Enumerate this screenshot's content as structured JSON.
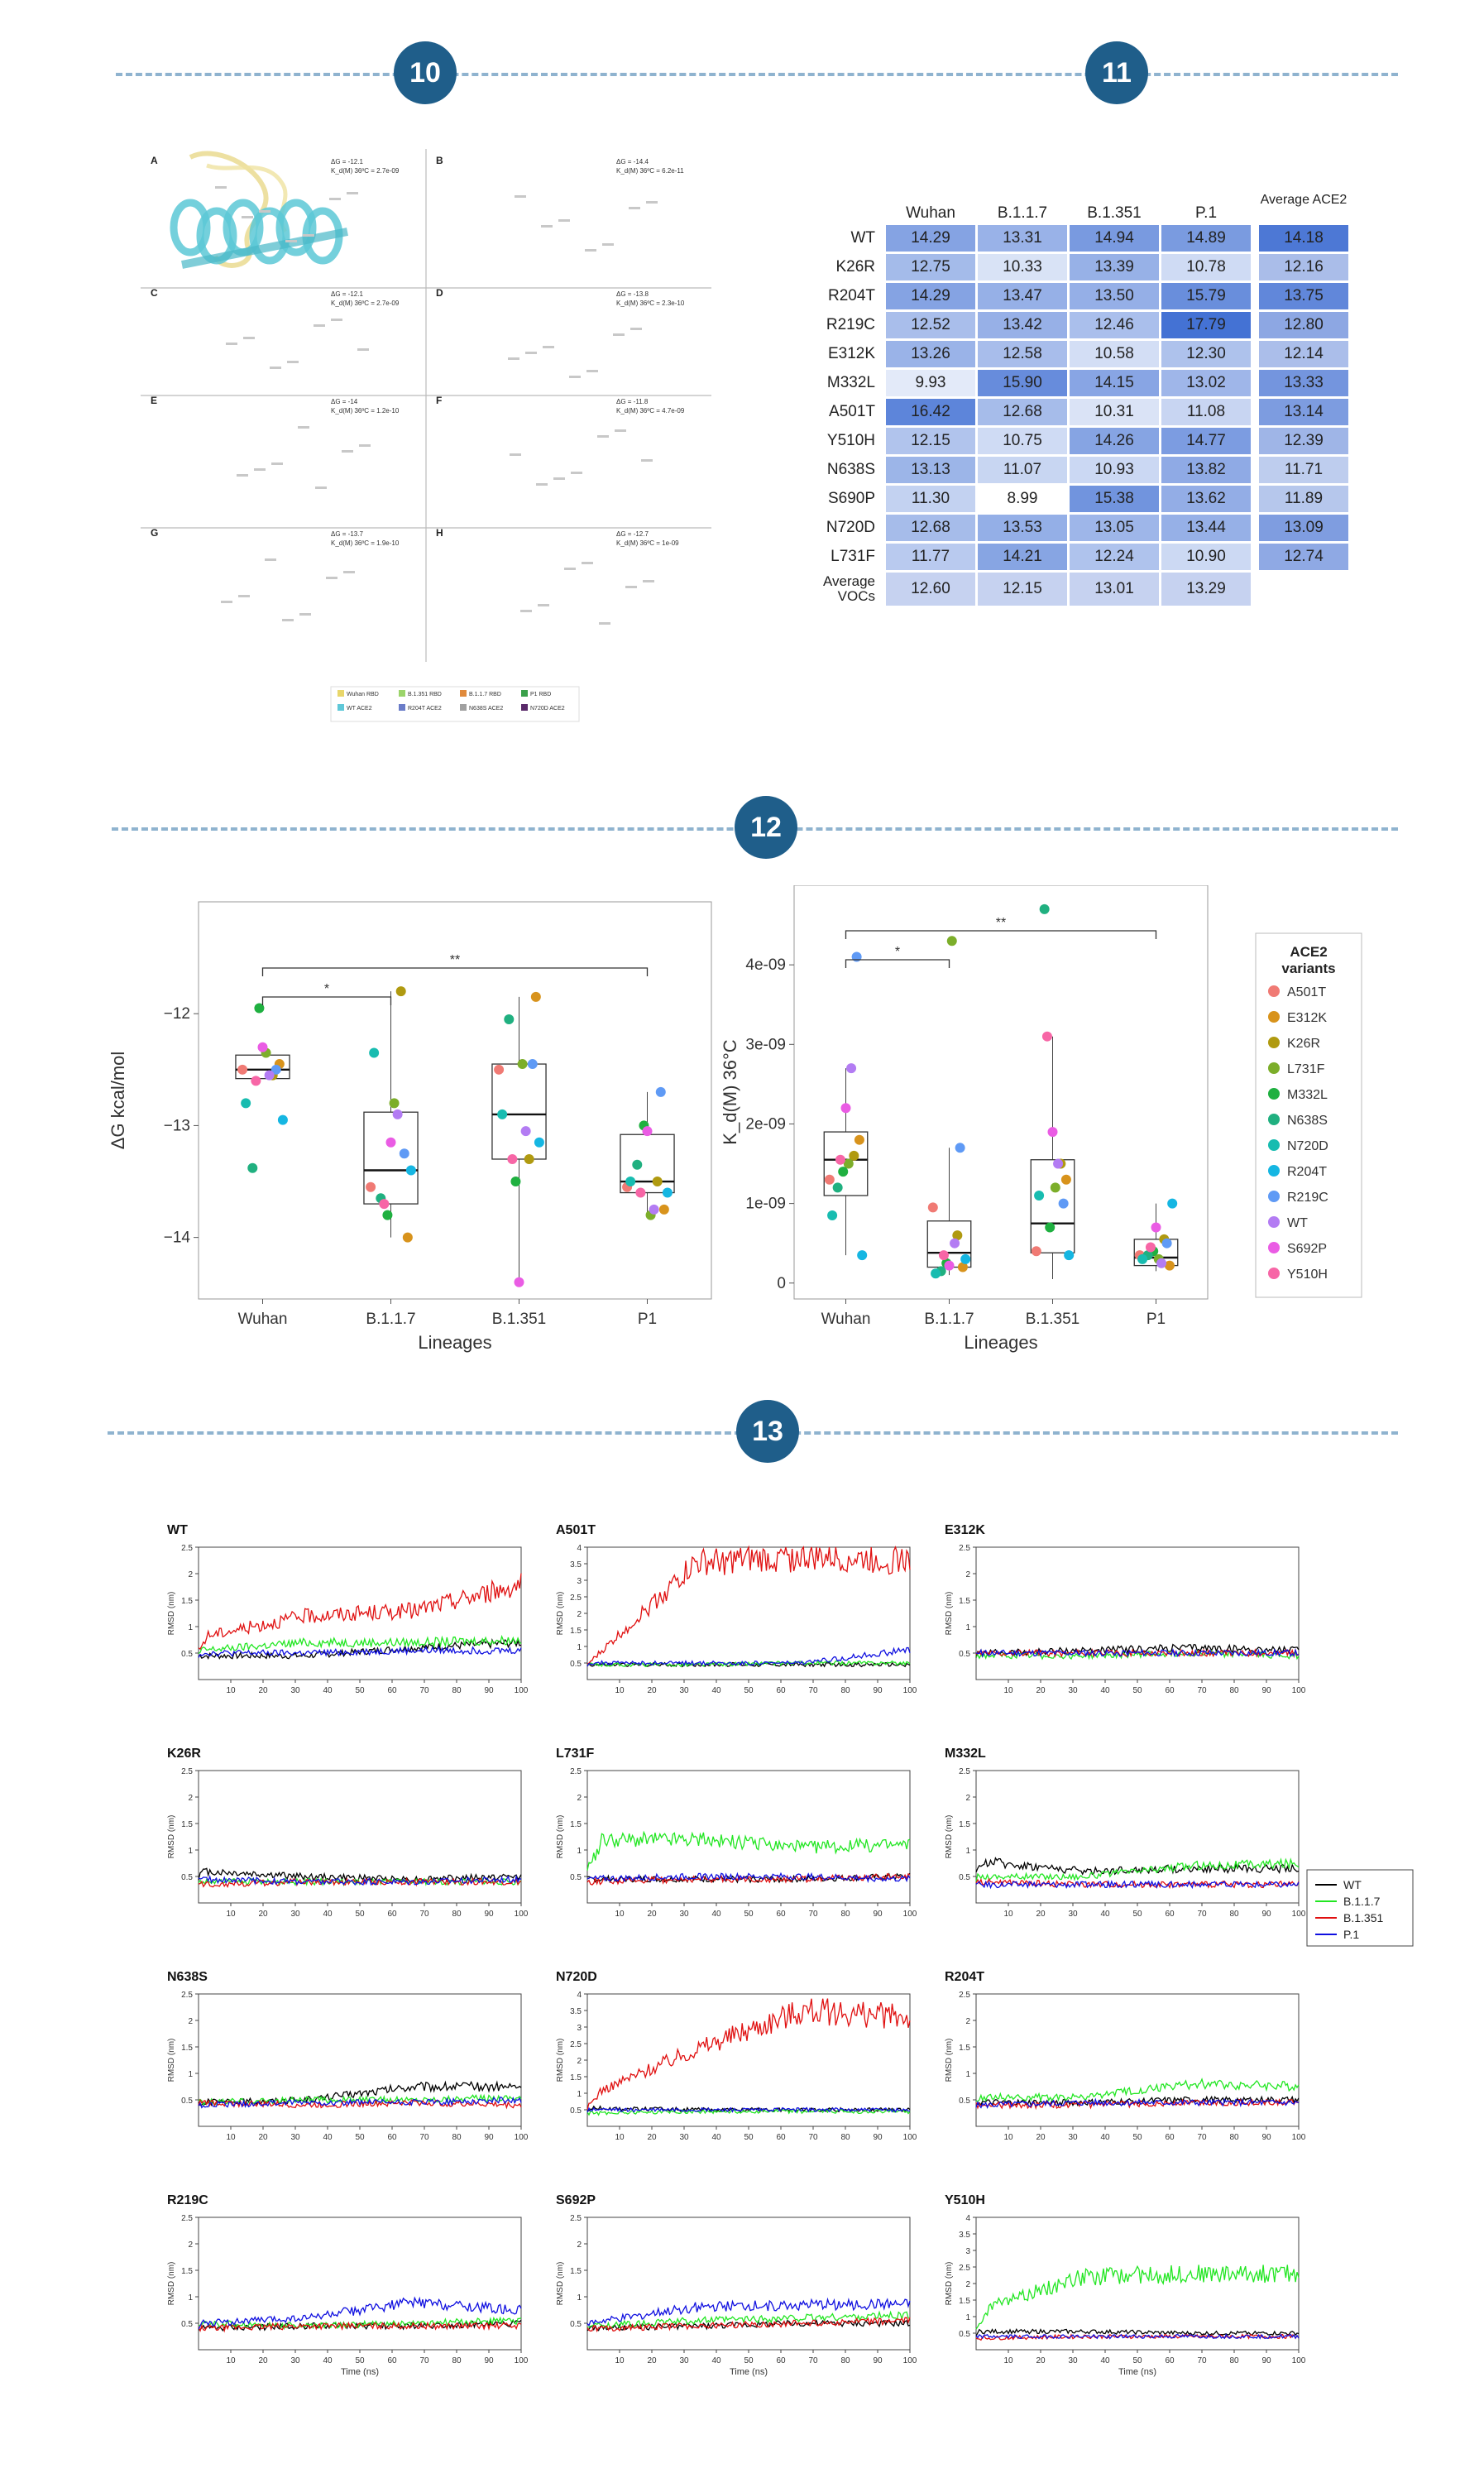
{
  "badges": [
    "10",
    "11",
    "12",
    "13"
  ],
  "panel10": {
    "panels": [
      {
        "letter": "A",
        "dg": "ΔG = -12.1",
        "kd": "K_d(M) 36ºC = 2.7e-09"
      },
      {
        "letter": "B",
        "dg": "ΔG = -14.4",
        "kd": "K_d(M) 36ºC = 6.2e-11"
      },
      {
        "letter": "C",
        "dg": "ΔG = -12.1",
        "kd": "K_d(M) 36ºC = 2.7e-09"
      },
      {
        "letter": "D",
        "dg": "ΔG = -13.8",
        "kd": "K_d(M) 36ºC = 2.3e-10"
      },
      {
        "letter": "E",
        "dg": "ΔG = -14",
        "kd": "K_d(M) 36ºC = 1.2e-10"
      },
      {
        "letter": "F",
        "dg": "ΔG = -11.8",
        "kd": "K_d(M) 36ºC = 4.7e-09"
      },
      {
        "letter": "G",
        "dg": "ΔG = -13.7",
        "kd": "K_d(M) 36ºC = 1.9e-10"
      },
      {
        "letter": "H",
        "dg": "ΔG = -12.7",
        "kd": "K_d(M) 36ºC = 1e-09"
      }
    ],
    "legend": [
      {
        "label": "Wuhan RBD",
        "color": "#e8d66a"
      },
      {
        "label": "B.1.351 RBD",
        "color": "#9bd46a"
      },
      {
        "label": "B.1.1.7 RBD",
        "color": "#e08a3c"
      },
      {
        "label": "P1 RBD",
        "color": "#3aa04a"
      },
      {
        "label": "WT ACE2",
        "color": "#5fc8d8"
      },
      {
        "label": "R204T ACE2",
        "color": "#6a7cc8"
      },
      {
        "label": "N638S ACE2",
        "color": "#a0a0a0"
      },
      {
        "label": "N720D ACE2",
        "color": "#5a2a6a"
      }
    ]
  },
  "chart_data": [
    {
      "type": "heatmap",
      "title": "",
      "columns": [
        "Wuhan",
        "B.1.1.7",
        "B.1.351",
        "P.1"
      ],
      "avg_column": "Average ACE2",
      "rows": [
        "WT",
        "K26R",
        "R204T",
        "R219C",
        "E312K",
        "M332L",
        "A501T",
        "Y510H",
        "N638S",
        "S690P",
        "N720D",
        "L731F"
      ],
      "values": [
        [
          14.29,
          13.31,
          14.94,
          14.89
        ],
        [
          12.75,
          10.33,
          13.39,
          10.78
        ],
        [
          14.29,
          13.47,
          13.5,
          15.79
        ],
        [
          12.52,
          13.42,
          12.46,
          17.79
        ],
        [
          13.26,
          12.58,
          10.58,
          12.3
        ],
        [
          9.93,
          15.9,
          14.15,
          13.02
        ],
        [
          16.42,
          12.68,
          10.31,
          11.08
        ],
        [
          12.15,
          10.75,
          14.26,
          14.77
        ],
        [
          13.13,
          11.07,
          10.93,
          13.82
        ],
        [
          11.3,
          8.99,
          15.38,
          13.62
        ],
        [
          12.68,
          13.53,
          13.05,
          13.44
        ],
        [
          11.77,
          14.21,
          12.24,
          10.9
        ]
      ],
      "row_avg": [
        14.18,
        12.16,
        13.75,
        12.8,
        12.14,
        13.33,
        13.14,
        12.39,
        11.71,
        11.89,
        13.09,
        12.74
      ],
      "avg_row_label": "Average VOCs",
      "col_avg": [
        12.6,
        12.15,
        13.01,
        13.29
      ]
    },
    {
      "type": "scatter",
      "subtype": "boxplot",
      "title": "",
      "xlabel": "Lineages",
      "ylabel": "ΔG kcal/mol",
      "categories": [
        "Wuhan",
        "B.1.1.7",
        "B.1.351",
        "P1"
      ],
      "yticks": [
        -12,
        -13,
        -14
      ],
      "ylim": [
        -14.55,
        -11.0
      ],
      "box": [
        {
          "q1": -12.58,
          "median": -12.5,
          "q3": -12.37,
          "min": -12.58,
          "max": -12.37
        },
        {
          "q1": -13.7,
          "median": -13.4,
          "q3": -12.88,
          "min": -14.0,
          "max": -11.8
        },
        {
          "q1": -13.3,
          "median": -12.9,
          "q3": -12.45,
          "min": -14.4,
          "max": -11.85
        },
        {
          "q1": -13.6,
          "median": -13.5,
          "q3": -13.08,
          "min": -13.8,
          "max": -12.7
        }
      ],
      "points": [
        [
          -12.5,
          -12.45,
          -12.55,
          -12.35,
          -11.95,
          -13.38,
          -12.8,
          -12.95,
          -12.5,
          -12.55,
          -12.3,
          -12.6
        ],
        [
          -13.55,
          -14.0,
          -11.8,
          -12.8,
          -13.8,
          -13.65,
          -12.35,
          -13.4,
          -13.25,
          -12.9,
          -13.15,
          -13.7
        ],
        [
          -12.5,
          -11.85,
          -13.3,
          -12.45,
          -13.5,
          -12.05,
          -12.9,
          -13.15,
          -12.45,
          -13.05,
          -14.4,
          -13.3
        ],
        [
          -13.55,
          -13.75,
          -13.5,
          -13.8,
          -13.0,
          -13.35,
          -13.5,
          -13.6,
          -12.7,
          -13.75,
          -13.05,
          -13.6
        ]
      ],
      "point_series": [
        "A501T",
        "E312K",
        "K26R",
        "L731F",
        "M332L",
        "N638S",
        "N720D",
        "R204T",
        "R219C",
        "WT",
        "S692P",
        "Y510H"
      ],
      "significance": [
        {
          "label": "*",
          "from": "Wuhan",
          "to": "B.1.1.7"
        },
        {
          "label": "**",
          "from": "Wuhan",
          "to": "P1"
        }
      ]
    },
    {
      "type": "scatter",
      "subtype": "boxplot",
      "title": "",
      "xlabel": "Lineages",
      "ylabel": "K_d(M) 36°C",
      "categories": [
        "Wuhan",
        "B.1.1.7",
        "B.1.351",
        "P1"
      ],
      "ytick_labels": [
        "0",
        "1e-09",
        "2e-09",
        "3e-09",
        "4e-09"
      ],
      "yticks": [
        0,
        1e-09,
        2e-09,
        3e-09,
        4e-09
      ],
      "ylim": [
        -2e-10,
        5e-09
      ],
      "box": [
        {
          "q1": 1.1e-09,
          "median": 1.55e-09,
          "q3": 1.9e-09,
          "min": 3.5e-10,
          "max": 2.7e-09
        },
        {
          "q1": 2e-10,
          "median": 3.8e-10,
          "q3": 7.8e-10,
          "min": 1e-10,
          "max": 1.7e-09
        },
        {
          "q1": 3.8e-10,
          "median": 7.5e-10,
          "q3": 1.55e-09,
          "min": 5e-11,
          "max": 3.1e-09
        },
        {
          "q1": 2.2e-10,
          "median": 3.2e-10,
          "q3": 5.5e-10,
          "min": 1.5e-10,
          "max": 1e-09
        }
      ],
      "points": [
        [
          1.3e-09,
          1.8e-09,
          1.6e-09,
          1.5e-09,
          1.4e-09,
          1.2e-09,
          8.5e-10,
          3.5e-10,
          4.1e-09,
          2.7e-09,
          2.2e-09,
          1.55e-09
        ],
        [
          9.5e-10,
          2e-10,
          6e-10,
          4.3e-09,
          2.5e-10,
          1.5e-10,
          1.2e-10,
          3e-10,
          1.7e-09,
          5e-10,
          2.2e-10,
          3.5e-10
        ],
        [
          4e-10,
          1.3e-09,
          1.5e-09,
          1.2e-09,
          7e-10,
          4.7e-09,
          1.1e-09,
          3.5e-10,
          1e-09,
          1.5e-09,
          1.9e-09,
          3.1e-09
        ],
        [
          3.5e-10,
          2.2e-10,
          5.5e-10,
          3e-10,
          4e-10,
          3.5e-10,
          3e-10,
          1e-09,
          5e-10,
          2.5e-10,
          7e-10,
          4.5e-10
        ]
      ],
      "point_series": [
        "A501T",
        "E312K",
        "K26R",
        "L731F",
        "M332L",
        "N638S",
        "N720D",
        "R204T",
        "R219C",
        "WT",
        "S692P",
        "Y510H"
      ],
      "significance": [
        {
          "label": "*",
          "from": "Wuhan",
          "to": "B.1.1.7"
        },
        {
          "label": "**",
          "from": "Wuhan",
          "to": "P1"
        }
      ],
      "legend_title": "ACE2 variants",
      "legend": [
        {
          "name": "A501T",
          "color": "#f07a74"
        },
        {
          "name": "E312K",
          "color": "#d8931c"
        },
        {
          "name": "K26R",
          "color": "#b09a10"
        },
        {
          "name": "L731F",
          "color": "#7cae2a"
        },
        {
          "name": "M332L",
          "color": "#1fb040"
        },
        {
          "name": "N638S",
          "color": "#20b080"
        },
        {
          "name": "N720D",
          "color": "#18bcb0"
        },
        {
          "name": "R204T",
          "color": "#15b6e2"
        },
        {
          "name": "R219C",
          "color": "#5f9af5"
        },
        {
          "name": "WT",
          "color": "#b37cf3"
        },
        {
          "name": "S692P",
          "color": "#ea5ce4"
        },
        {
          "name": "Y510H",
          "color": "#f766a6"
        }
      ]
    },
    {
      "type": "line",
      "title": "",
      "xlabel": "Time (ns)",
      "ylabel": "RMSD (nm)",
      "xlim": [
        0,
        100
      ],
      "xticks": [
        10,
        20,
        30,
        40,
        50,
        60,
        70,
        80,
        90,
        100
      ],
      "series_names": [
        "WT",
        "B.1.1.7",
        "B.1.351",
        "P.1"
      ],
      "series_colors": [
        "#000000",
        "#22e622",
        "#e01010",
        "#1010e0"
      ],
      "legend": [
        "WT",
        "B.1.1.7",
        "B.1.351",
        "P.1"
      ],
      "panels": [
        {
          "title": "WT",
          "ymax": 2.5,
          "yticks": [
            0.5,
            1,
            1.5,
            2,
            2.5
          ],
          "showx": false,
          "levels": [
            [
              0.45,
              0.45,
              0.6,
              0.7
            ],
            [
              0.55,
              0.7,
              0.7,
              0.75
            ],
            [
              0.8,
              1.2,
              1.3,
              1.8
            ],
            [
              0.5,
              0.5,
              0.55,
              0.55
            ]
          ]
        },
        {
          "title": "A501T",
          "ymax": 4,
          "yticks": [
            0.5,
            1,
            1.5,
            2,
            2.5,
            3,
            3.5,
            4
          ],
          "showx": false,
          "levels": [
            [
              0.45,
              0.45,
              0.45,
              0.45
            ],
            [
              0.45,
              0.45,
              0.5,
              0.5
            ],
            [
              0.45,
              3.5,
              3.7,
              3.6
            ],
            [
              0.5,
              0.5,
              0.5,
              0.9
            ]
          ]
        },
        {
          "title": "E312K",
          "ymax": 2.5,
          "yticks": [
            0.5,
            1,
            1.5,
            2,
            2.5
          ],
          "showx": false,
          "levels": [
            [
              0.5,
              0.55,
              0.6,
              0.55
            ],
            [
              0.45,
              0.45,
              0.5,
              0.45
            ],
            [
              0.5,
              0.5,
              0.5,
              0.5
            ],
            [
              0.5,
              0.5,
              0.5,
              0.5
            ]
          ]
        },
        {
          "title": "K26R",
          "ymax": 2.5,
          "yticks": [
            0.5,
            1,
            1.5,
            2,
            2.5
          ],
          "showx": false,
          "levels": [
            [
              0.6,
              0.5,
              0.45,
              0.5
            ],
            [
              0.4,
              0.4,
              0.4,
              0.4
            ],
            [
              0.35,
              0.4,
              0.4,
              0.4
            ],
            [
              0.45,
              0.4,
              0.4,
              0.45
            ]
          ]
        },
        {
          "title": "L731F",
          "ymax": 2.5,
          "yticks": [
            0.5,
            1,
            1.5,
            2,
            2.5
          ],
          "showx": false,
          "levels": [
            [
              0.45,
              0.45,
              0.45,
              0.5
            ],
            [
              1.2,
              1.2,
              1.05,
              1.1
            ],
            [
              0.4,
              0.45,
              0.45,
              0.5
            ],
            [
              0.45,
              0.5,
              0.5,
              0.45
            ]
          ]
        },
        {
          "title": "M332L",
          "ymax": 2.5,
          "yticks": [
            0.5,
            1,
            1.5,
            2,
            2.5
          ],
          "showx": false,
          "levels": [
            [
              0.8,
              0.6,
              0.65,
              0.65
            ],
            [
              0.5,
              0.5,
              0.7,
              0.75
            ],
            [
              0.4,
              0.35,
              0.35,
              0.35
            ],
            [
              0.35,
              0.35,
              0.35,
              0.35
            ]
          ]
        },
        {
          "title": "N638S",
          "ymax": 2.5,
          "yticks": [
            0.5,
            1,
            1.5,
            2,
            2.5
          ],
          "showx": false,
          "levels": [
            [
              0.45,
              0.5,
              0.75,
              0.75
            ],
            [
              0.45,
              0.5,
              0.5,
              0.55
            ],
            [
              0.45,
              0.4,
              0.45,
              0.4
            ],
            [
              0.4,
              0.45,
              0.45,
              0.5
            ]
          ]
        },
        {
          "title": "N720D",
          "ymax": 4,
          "yticks": [
            0.5,
            1,
            1.5,
            2,
            2.5,
            3,
            3.5,
            4
          ],
          "showx": false,
          "levels": [
            [
              0.55,
              0.5,
              0.5,
              0.5
            ],
            [
              0.4,
              0.45,
              0.45,
              0.45
            ],
            [
              0.9,
              2.3,
              3.5,
              3.3
            ],
            [
              0.5,
              0.5,
              0.5,
              0.5
            ]
          ]
        },
        {
          "title": "R204T",
          "ymax": 2.5,
          "yticks": [
            0.5,
            1,
            1.5,
            2,
            2.5
          ],
          "showx": false,
          "levels": [
            [
              0.45,
              0.45,
              0.5,
              0.5
            ],
            [
              0.55,
              0.55,
              0.8,
              0.75
            ],
            [
              0.4,
              0.4,
              0.45,
              0.45
            ],
            [
              0.4,
              0.45,
              0.45,
              0.45
            ]
          ]
        },
        {
          "title": "R219C",
          "ymax": 2.5,
          "yticks": [
            0.5,
            1,
            1.5,
            2,
            2.5
          ],
          "showx": true,
          "levels": [
            [
              0.4,
              0.45,
              0.45,
              0.5
            ],
            [
              0.5,
              0.45,
              0.5,
              0.55
            ],
            [
              0.4,
              0.45,
              0.45,
              0.45
            ],
            [
              0.5,
              0.6,
              0.9,
              0.75
            ]
          ]
        },
        {
          "title": "S692P",
          "ymax": 2.5,
          "yticks": [
            0.5,
            1,
            1.5,
            2,
            2.5
          ],
          "showx": true,
          "levels": [
            [
              0.4,
              0.45,
              0.5,
              0.5
            ],
            [
              0.45,
              0.55,
              0.6,
              0.65
            ],
            [
              0.4,
              0.45,
              0.5,
              0.55
            ],
            [
              0.5,
              0.8,
              0.85,
              0.85
            ]
          ]
        },
        {
          "title": "Y510H",
          "ymax": 4,
          "yticks": [
            0.5,
            1,
            1.5,
            2,
            2.5,
            3,
            3.5,
            4
          ],
          "showx": true,
          "levels": [
            [
              0.55,
              0.55,
              0.5,
              0.5
            ],
            [
              1.2,
              2.2,
              2.3,
              2.3
            ],
            [
              0.35,
              0.4,
              0.4,
              0.4
            ],
            [
              0.4,
              0.4,
              0.4,
              0.4
            ]
          ]
        }
      ]
    }
  ]
}
